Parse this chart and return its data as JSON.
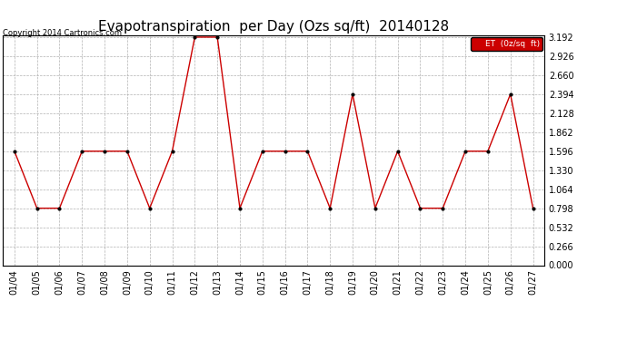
{
  "title": "Evapotranspiration  per Day (Ozs sq/ft)  20140128",
  "copyright": "Copyright 2014 Cartronics.com",
  "legend_label": "ET  (0z/sq  ft)",
  "dates": [
    "01/04",
    "01/05",
    "01/06",
    "01/07",
    "01/08",
    "01/09",
    "01/10",
    "01/11",
    "01/12",
    "01/13",
    "01/14",
    "01/15",
    "01/16",
    "01/17",
    "01/18",
    "01/19",
    "01/20",
    "01/21",
    "01/22",
    "01/23",
    "01/24",
    "01/25",
    "01/26",
    "01/27"
  ],
  "values": [
    1.596,
    0.798,
    0.798,
    1.596,
    1.596,
    1.596,
    0.798,
    1.596,
    3.192,
    3.192,
    0.798,
    1.596,
    1.596,
    1.596,
    0.798,
    2.394,
    0.798,
    1.596,
    0.798,
    0.798,
    1.596,
    1.596,
    2.394,
    0.798
  ],
  "line_color": "#cc0000",
  "marker_color": "#000000",
  "background_color": "#ffffff",
  "grid_color": "#aaaaaa",
  "ylim_min": 0.0,
  "ylim_max": 3.192,
  "yticks": [
    0.0,
    0.266,
    0.532,
    0.798,
    1.064,
    1.33,
    1.596,
    1.862,
    2.128,
    2.394,
    2.66,
    2.926,
    3.192
  ],
  "title_fontsize": 11,
  "tick_fontsize": 7,
  "legend_bg": "#cc0000",
  "legend_text_color": "#ffffff",
  "legend_edge_color": "#000000"
}
